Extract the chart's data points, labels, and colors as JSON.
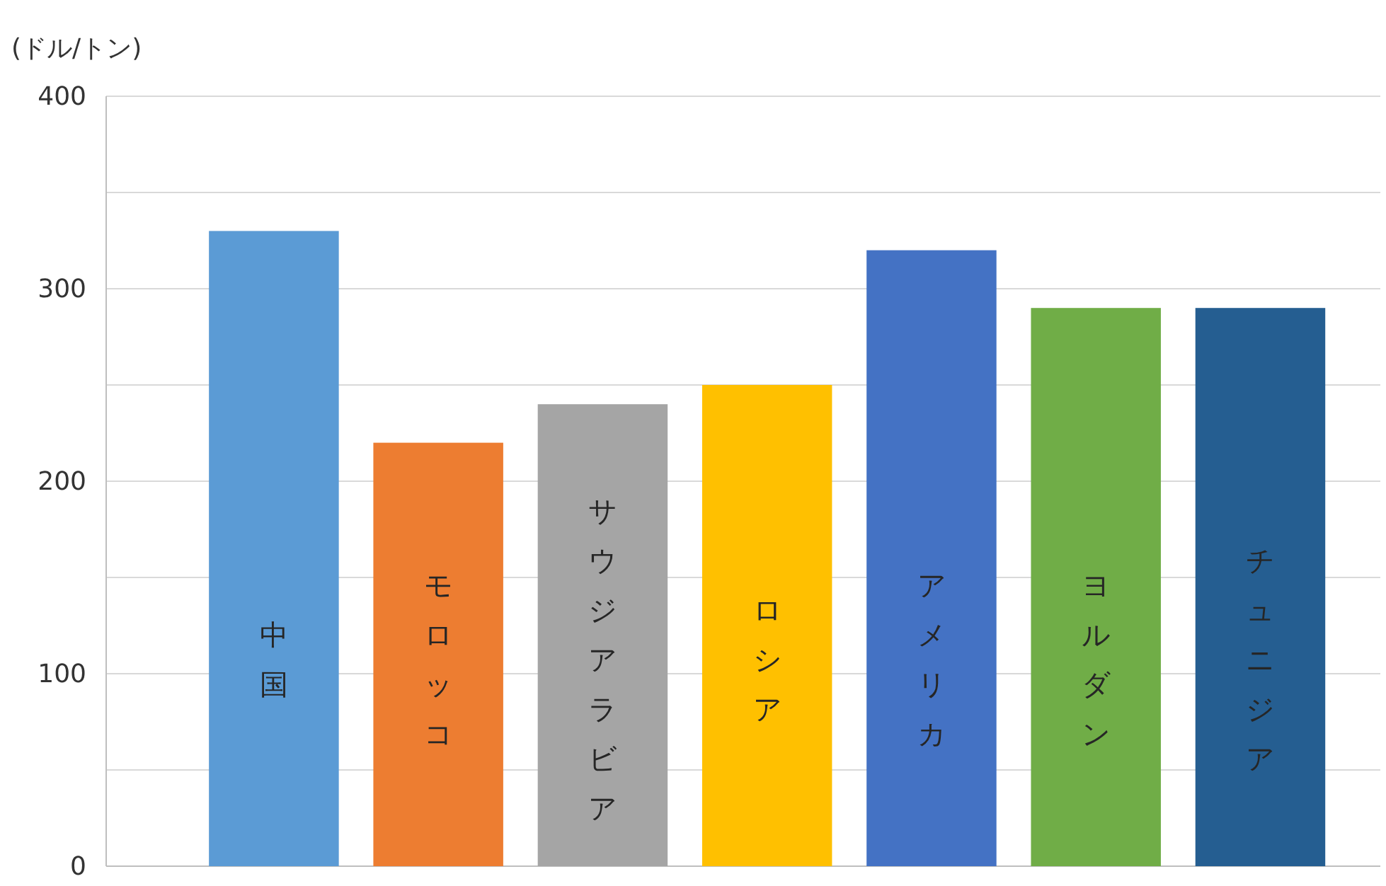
{
  "chart_data": {
    "type": "bar",
    "ylabel": "(ドル/トン)",
    "categories": [
      "中国",
      "モロッコ",
      "サウジアラビア",
      "ロシア",
      "アメリカ",
      "ヨルダン",
      "チュニジア"
    ],
    "values": [
      330,
      220,
      240,
      250,
      320,
      290,
      290
    ],
    "colors": [
      "#5b9bd5",
      "#ed7d31",
      "#a5a5a5",
      "#ffc000",
      "#4472c4",
      "#70ad47",
      "#255e91"
    ],
    "ylim": [
      0,
      400
    ],
    "yticks": [
      0,
      {
        "value": 50,
        "label": null
      },
      100,
      {
        "value": 150,
        "label": null
      },
      200,
      {
        "value": 250,
        "label": null
      },
      300,
      {
        "value": 350,
        "label": null
      },
      400
    ],
    "grid": "y"
  }
}
